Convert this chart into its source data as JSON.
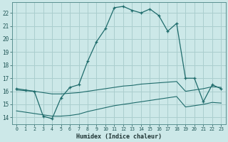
{
  "xlabel": "Humidex (Indice chaleur)",
  "bg_color": "#cce8e8",
  "grid_color": "#aacece",
  "line_color": "#1e6b6b",
  "ylim": [
    13.5,
    22.8
  ],
  "xlim": [
    -0.5,
    23.5
  ],
  "yticks": [
    14,
    15,
    16,
    17,
    18,
    19,
    20,
    21,
    22
  ],
  "xticks": [
    0,
    1,
    2,
    3,
    4,
    5,
    6,
    7,
    8,
    9,
    10,
    11,
    12,
    13,
    14,
    15,
    16,
    17,
    18,
    19,
    20,
    21,
    22,
    23
  ],
  "xtick_labels": [
    "0",
    "1",
    "2",
    "3",
    "4",
    "5",
    "6",
    "7",
    "8",
    "9",
    "10",
    "11",
    "12",
    "13",
    "14",
    "15",
    "16",
    "17",
    "18",
    "19",
    "20",
    "21",
    "22",
    "23"
  ],
  "main_line": {
    "x": [
      0,
      1,
      2,
      3,
      4,
      5,
      6,
      7,
      8,
      9,
      10,
      11,
      12,
      13,
      14,
      15,
      16,
      17,
      18,
      19,
      20,
      21,
      22,
      23
    ],
    "y": [
      16.2,
      16.1,
      16.0,
      14.1,
      13.9,
      15.5,
      16.3,
      16.5,
      18.3,
      19.8,
      20.8,
      22.4,
      22.5,
      22.2,
      22.0,
      22.3,
      21.8,
      20.6,
      21.2,
      17.0,
      17.0,
      15.2,
      16.5,
      16.2
    ]
  },
  "line2": {
    "x": [
      0,
      1,
      2,
      3,
      4,
      5,
      6,
      7,
      8,
      9,
      10,
      11,
      12,
      13,
      14,
      15,
      16,
      17,
      18,
      19,
      20,
      21,
      22,
      23
    ],
    "y": [
      16.1,
      16.05,
      16.0,
      15.9,
      15.8,
      15.8,
      15.85,
      15.9,
      16.0,
      16.1,
      16.2,
      16.3,
      16.4,
      16.45,
      16.55,
      16.6,
      16.65,
      16.7,
      16.75,
      16.0,
      16.1,
      16.2,
      16.35,
      16.3
    ]
  },
  "line3": {
    "x": [
      0,
      1,
      2,
      3,
      4,
      5,
      6,
      7,
      8,
      9,
      10,
      11,
      12,
      13,
      14,
      15,
      16,
      17,
      18,
      19,
      20,
      21,
      22,
      23
    ],
    "y": [
      14.5,
      14.4,
      14.3,
      14.2,
      14.1,
      14.1,
      14.15,
      14.25,
      14.45,
      14.6,
      14.75,
      14.9,
      15.0,
      15.1,
      15.2,
      15.3,
      15.4,
      15.5,
      15.6,
      14.8,
      14.9,
      15.0,
      15.15,
      15.1
    ]
  }
}
